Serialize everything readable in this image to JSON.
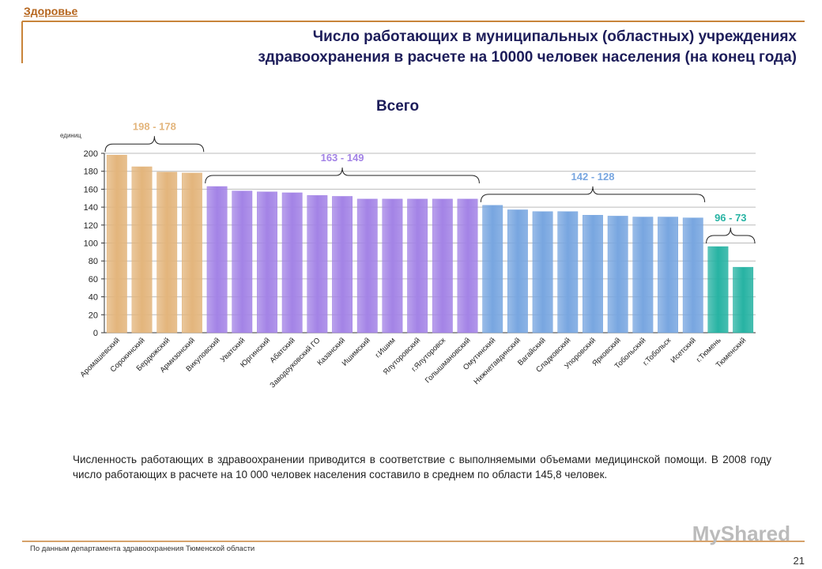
{
  "header": "Здоровье",
  "title": [
    "Число работающих в муниципальных (областных) учреждениях",
    "здравоохранения в расчете на 10000 человек населения (на конец года)"
  ],
  "chart_data": {
    "type": "bar",
    "title": "Всего",
    "y_label": "единиц",
    "categories": [
      "Аромашевский",
      "Сорокинский",
      "Бердюжский",
      "Армизонский",
      "Викуловский",
      "Уватский",
      "Юргинский",
      "Абатский",
      "Заводоуковский ГО",
      "Казанский",
      "Ишимский",
      "г.Ишим",
      "Ялуторовский",
      "г.Ялуторовск",
      "Голышмановский",
      "Омутинский",
      "Нижнетавдинский",
      "Вагайский",
      "Сладковский",
      "Упоровский",
      "Ярковский",
      "Тобольский",
      "г.Тобольск",
      "Исетский",
      "г.Тюмень",
      "Тюменский"
    ],
    "series": [
      {
        "name": "198 - 178",
        "color": "#e3b57c",
        "values": [
          198,
          185,
          179,
          178,
          null,
          null,
          null,
          null,
          null,
          null,
          null,
          null,
          null,
          null,
          null,
          null,
          null,
          null,
          null,
          null,
          null,
          null,
          null,
          null,
          null,
          null
        ]
      },
      {
        "name": "163 - 149",
        "color": "#a383e6",
        "values": [
          null,
          null,
          null,
          null,
          163,
          158,
          157,
          156,
          153,
          152,
          149,
          149,
          149,
          149,
          149,
          null,
          null,
          null,
          null,
          null,
          null,
          null,
          null,
          null,
          null,
          null
        ]
      },
      {
        "name": "142 - 128",
        "color": "#78a6e0",
        "values": [
          null,
          null,
          null,
          null,
          null,
          null,
          null,
          null,
          null,
          null,
          null,
          null,
          null,
          null,
          null,
          142,
          137,
          135,
          135,
          131,
          130,
          129,
          129,
          128,
          null,
          null
        ]
      },
      {
        "name": "96 - 73",
        "color": "#27b3a3",
        "values": [
          null,
          null,
          null,
          null,
          null,
          null,
          null,
          null,
          null,
          null,
          null,
          null,
          null,
          null,
          null,
          null,
          null,
          null,
          null,
          null,
          null,
          null,
          null,
          null,
          96,
          73
        ]
      }
    ],
    "ylim": [
      0,
      200
    ],
    "yticks": [
      0,
      20,
      40,
      60,
      80,
      100,
      120,
      140,
      160,
      180,
      200
    ],
    "grid": true
  },
  "text": "Численность работающих в здравоохранении приводится в соответствие с выполняемыми объемами медицинской помощи. В 2008 году число работающих в расчете на 10 000 человек населения составило в среднем по области 145,8 человек.",
  "footer": "По данным департамента здравоохранения Тюменской области",
  "page_number": "21",
  "watermark": "MyShared"
}
